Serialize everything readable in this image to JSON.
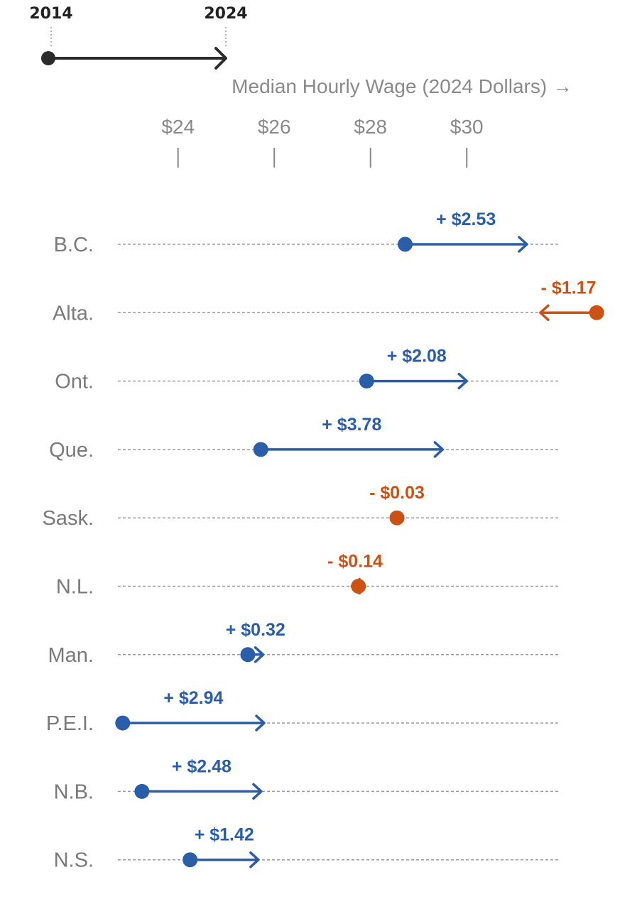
{
  "legend": {
    "start_year": "2014",
    "end_year": "2024",
    "color": "#2b2b2b"
  },
  "chart_data": {
    "type": "arrow-dot",
    "xlabel": "Median Hourly Wage (2024 Dollars) →",
    "ticks": [
      24,
      26,
      28,
      30
    ],
    "tick_labels": [
      "$24",
      "$26",
      "$28",
      "$30"
    ],
    "xlim": [
      22.75,
      31.9
    ],
    "colors": {
      "increase": "#2a5ea8",
      "decrease": "#cc5214",
      "guide": "#9a9a9a"
    },
    "rows": [
      {
        "label": "B.C.",
        "start": 28.72,
        "end": 31.25,
        "change": "+ $2.53"
      },
      {
        "label": "Alta.",
        "start": 32.7,
        "end": 31.53,
        "change": "- $1.17"
      },
      {
        "label": "Ont.",
        "start": 27.92,
        "end": 30.0,
        "change": "+ $2.08"
      },
      {
        "label": "Que.",
        "start": 25.72,
        "end": 29.5,
        "change": "+ $3.78"
      },
      {
        "label": "Sask.",
        "start": 28.55,
        "end": 28.52,
        "change": "- $0.03"
      },
      {
        "label": "N.L.",
        "start": 27.75,
        "end": 27.61,
        "change": "- $0.14"
      },
      {
        "label": "Man.",
        "start": 25.45,
        "end": 25.77,
        "change": "+ $0.32"
      },
      {
        "label": "P.E.I.",
        "start": 22.85,
        "end": 25.79,
        "change": "+ $2.94"
      },
      {
        "label": "N.B.",
        "start": 23.25,
        "end": 25.73,
        "change": "+ $2.48"
      },
      {
        "label": "N.S.",
        "start": 24.25,
        "end": 25.67,
        "change": "+ $1.42"
      }
    ]
  }
}
